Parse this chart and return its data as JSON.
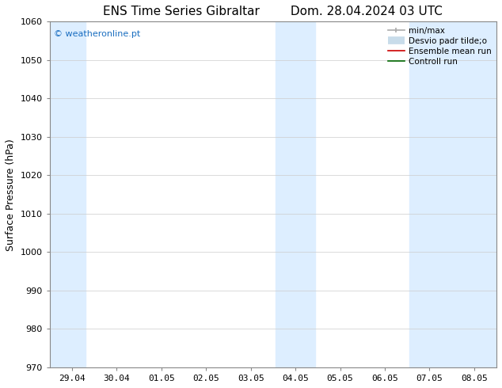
{
  "title_left": "ENS Time Series Gibraltar",
  "title_right": "Dom. 28.04.2024 03 UTC",
  "ylabel": "Surface Pressure (hPa)",
  "ylim": [
    970,
    1060
  ],
  "yticks": [
    970,
    980,
    990,
    1000,
    1010,
    1020,
    1030,
    1040,
    1050,
    1060
  ],
  "x_labels": [
    "29.04",
    "30.04",
    "01.05",
    "02.05",
    "03.05",
    "04.05",
    "05.05",
    "06.05",
    "07.05",
    "08.05"
  ],
  "x_values": [
    0,
    1,
    2,
    3,
    4,
    5,
    6,
    7,
    8,
    9
  ],
  "xlim": [
    -0.5,
    9.5
  ],
  "shaded_bands": [
    {
      "x_start": -0.5,
      "x_end": 0.3,
      "color": "#ddeeff"
    },
    {
      "x_start": 4.55,
      "x_end": 5.45,
      "color": "#ddeeff"
    },
    {
      "x_start": 7.55,
      "x_end": 9.5,
      "color": "#ddeeff"
    }
  ],
  "watermark_text": "© weatheronline.pt",
  "watermark_color": "#1a6ec0",
  "background_color": "#ffffff",
  "grid_color": "#cccccc",
  "spine_color": "#888888",
  "title_fontsize": 11,
  "ylabel_fontsize": 9,
  "tick_fontsize": 8,
  "watermark_fontsize": 8,
  "legend_fontsize": 7.5
}
